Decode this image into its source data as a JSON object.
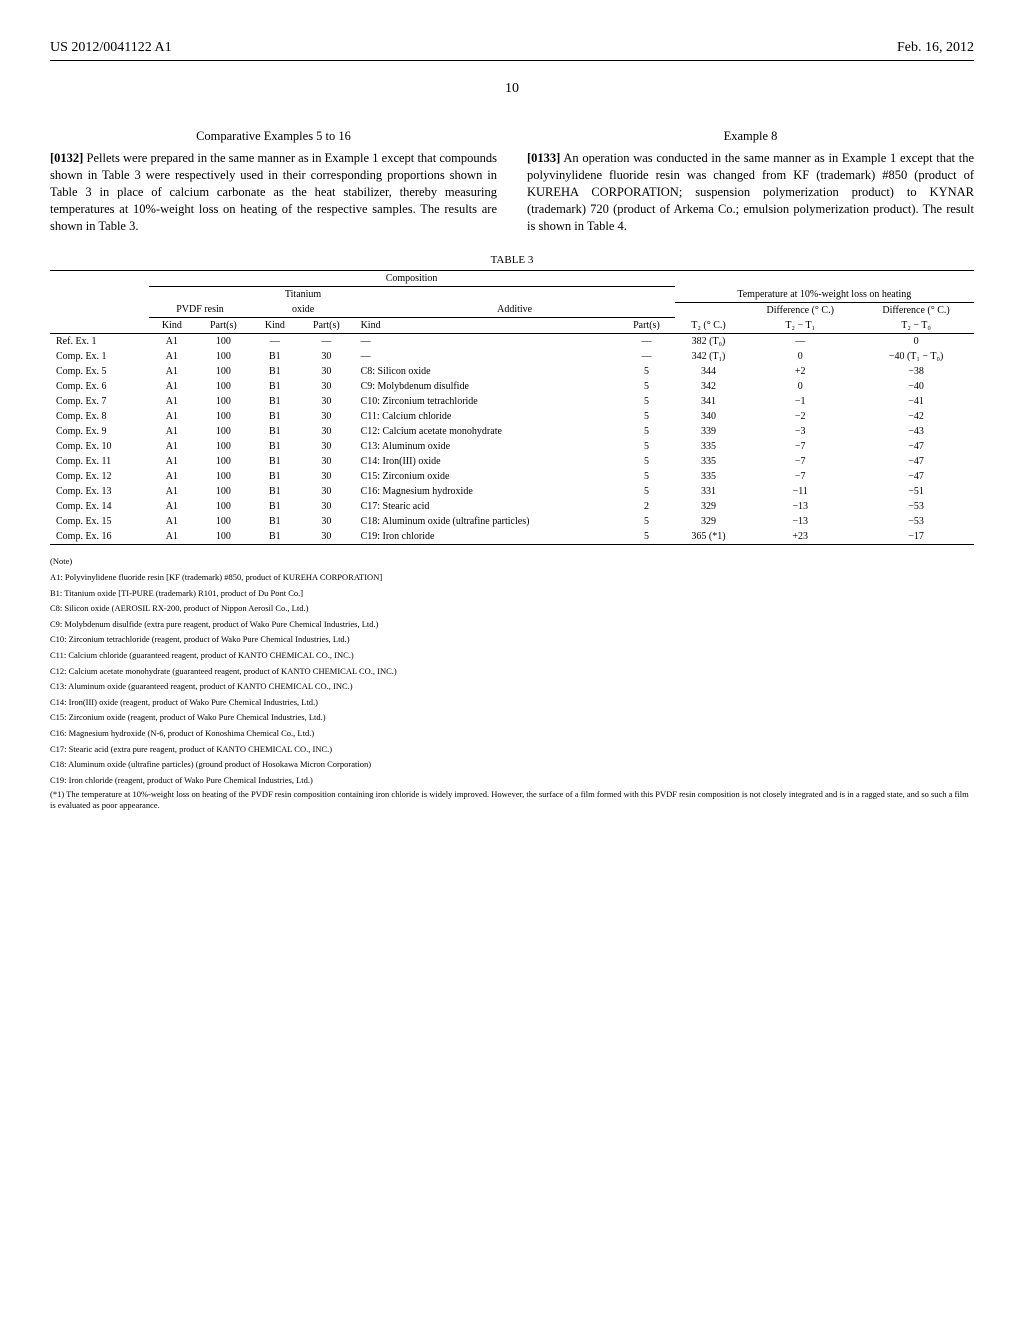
{
  "header": {
    "left": "US 2012/0041122 A1",
    "right": "Feb. 16, 2012",
    "page": "10"
  },
  "left_col": {
    "heading": "Comparative Examples 5 to 16",
    "para_num": "[0132]",
    "para": "Pellets were prepared in the same manner as in Example 1 except that compounds shown in Table 3 were respectively used in their corresponding proportions shown in Table 3 in place of calcium carbonate as the heat stabilizer, thereby measuring temperatures at 10%-weight loss on heating of the respective samples. The results are shown in Table 3."
  },
  "right_col": {
    "heading": "Example 8",
    "para_num": "[0133]",
    "para": "An operation was conducted in the same manner as in Example 1 except that the polyvinylidene fluoride resin was changed from KF (trademark) #850 (product of KUREHA CORPORATION; suspension polymerization product) to KYNAR (trademark) 720 (product of Arkema Co.; emulsion polymerization product). The result is shown in Table 4."
  },
  "table": {
    "caption": "TABLE 3",
    "group1": "Composition",
    "group2a": "PVDF resin",
    "group2b_top": "Titanium",
    "group2b": "oxide",
    "group2c": "Additive",
    "group3": "Temperature at 10%-weight loss on heating",
    "col_diff1": "Difference (° C.)",
    "col_diff2": "Difference (° C.)",
    "col_kind": "Kind",
    "col_parts": "Part(s)",
    "col_t2": "T₂ (° C.)",
    "col_d1": "T₂ − T₁",
    "col_d2": "T₂ − T₀",
    "rows": [
      {
        "label": "Ref. Ex. 1",
        "r_kind": "A1",
        "r_part": "100",
        "o_kind": "—",
        "o_part": "—",
        "a_kind": "—",
        "a_part": "—",
        "t2": "382 (T₀)",
        "d1": "—",
        "d2": "0"
      },
      {
        "label": "Comp. Ex. 1",
        "r_kind": "A1",
        "r_part": "100",
        "o_kind": "B1",
        "o_part": "30",
        "a_kind": "—",
        "a_part": "—",
        "t2": "342 (T₁)",
        "d1": "0",
        "d2": "−40 (T₁ − T₀)"
      },
      {
        "label": "Comp. Ex. 5",
        "r_kind": "A1",
        "r_part": "100",
        "o_kind": "B1",
        "o_part": "30",
        "a_kind": "C8: Silicon oxide",
        "a_part": "5",
        "t2": "344",
        "d1": "+2",
        "d2": "−38"
      },
      {
        "label": "Comp. Ex. 6",
        "r_kind": "A1",
        "r_part": "100",
        "o_kind": "B1",
        "o_part": "30",
        "a_kind": "C9: Molybdenum disulfide",
        "a_part": "5",
        "t2": "342",
        "d1": "0",
        "d2": "−40"
      },
      {
        "label": "Comp. Ex. 7",
        "r_kind": "A1",
        "r_part": "100",
        "o_kind": "B1",
        "o_part": "30",
        "a_kind": "C10: Zirconium tetrachloride",
        "a_part": "5",
        "t2": "341",
        "d1": "−1",
        "d2": "−41"
      },
      {
        "label": "Comp. Ex. 8",
        "r_kind": "A1",
        "r_part": "100",
        "o_kind": "B1",
        "o_part": "30",
        "a_kind": "C11: Calcium chloride",
        "a_part": "5",
        "t2": "340",
        "d1": "−2",
        "d2": "−42"
      },
      {
        "label": "Comp. Ex. 9",
        "r_kind": "A1",
        "r_part": "100",
        "o_kind": "B1",
        "o_part": "30",
        "a_kind": "C12: Calcium acetate monohydrate",
        "a_part": "5",
        "t2": "339",
        "d1": "−3",
        "d2": "−43"
      },
      {
        "label": "Comp. Ex. 10",
        "r_kind": "A1",
        "r_part": "100",
        "o_kind": "B1",
        "o_part": "30",
        "a_kind": "C13: Aluminum oxide",
        "a_part": "5",
        "t2": "335",
        "d1": "−7",
        "d2": "−47"
      },
      {
        "label": "Comp. Ex. 11",
        "r_kind": "A1",
        "r_part": "100",
        "o_kind": "B1",
        "o_part": "30",
        "a_kind": "C14: Iron(III) oxide",
        "a_part": "5",
        "t2": "335",
        "d1": "−7",
        "d2": "−47"
      },
      {
        "label": "Comp. Ex. 12",
        "r_kind": "A1",
        "r_part": "100",
        "o_kind": "B1",
        "o_part": "30",
        "a_kind": "C15: Zirconium oxide",
        "a_part": "5",
        "t2": "335",
        "d1": "−7",
        "d2": "−47"
      },
      {
        "label": "Comp. Ex. 13",
        "r_kind": "A1",
        "r_part": "100",
        "o_kind": "B1",
        "o_part": "30",
        "a_kind": "C16: Magnesium hydroxide",
        "a_part": "5",
        "t2": "331",
        "d1": "−11",
        "d2": "−51"
      },
      {
        "label": "Comp. Ex. 14",
        "r_kind": "A1",
        "r_part": "100",
        "o_kind": "B1",
        "o_part": "30",
        "a_kind": "C17: Stearic acid",
        "a_part": "2",
        "t2": "329",
        "d1": "−13",
        "d2": "−53"
      },
      {
        "label": "Comp. Ex. 15",
        "r_kind": "A1",
        "r_part": "100",
        "o_kind": "B1",
        "o_part": "30",
        "a_kind": "C18: Aluminum oxide (ultrafine particles)",
        "a_part": "5",
        "t2": "329",
        "d1": "−13",
        "d2": "−53"
      },
      {
        "label": "Comp. Ex. 16",
        "r_kind": "A1",
        "r_part": "100",
        "o_kind": "B1",
        "o_part": "30",
        "a_kind": "C19: Iron chloride",
        "a_part": "5",
        "t2": "365 (*1)",
        "d1": "+23",
        "d2": "−17"
      }
    ],
    "notes_label": "(Note)",
    "notes": [
      "A1: Polyvinylidene fluoride resin [KF (trademark) #850, product of KUREHA CORPORATION]",
      "B1: Titanium oxide [TI-PURE (trademark) R101, product of Du Pont Co.]",
      "C8: Silicon oxide (AEROSIL RX-200, product of Nippon Aerosil Co., Ltd.)",
      "C9: Molybdenum disulfide (extra pure reagent, product of Wako Pure Chemical Industries, Ltd.)",
      "C10: Zirconium tetrachloride (reagent, product of Wako Pure Chemical Industries, Ltd.)",
      "C11: Calcium chloride (guaranteed reagent, product of KANTO CHEMICAL CO., INC.)",
      "C12: Calcium acetate monohydrate (guaranteed reagent, product of KANTO CHEMICAL CO., INC.)",
      "C13: Aluminum oxide (guaranteed reagent, product of KANTO CHEMICAL CO., INC.)",
      "C14: Iron(III) oxide (reagent, product of Wako Pure Chemical Industries, Ltd.)",
      "C15: Zirconium oxide (reagent, product of Wako Pure Chemical Industries, Ltd.)",
      "C16: Magnesium hydroxide (N-6, product of Konoshima Chemical Co., Ltd.)",
      "C17: Stearic acid (extra pure reagent, product of KANTO CHEMICAL CO., INC.)",
      "C18: Aluminum oxide (ultrafine particles) (ground product of Hosokawa Micron Corporation)",
      "C19: Iron chloride (reagent, product of Wako Pure Chemical Industries, Ltd.)"
    ],
    "footnote": "(*1) The temperature at 10%-weight loss on heating of the PVDF resin composition containing iron chloride is widely improved. However, the surface of a film formed with this PVDF resin composition is not closely integrated and is in a ragged state, and so such a film is evaluated as poor appearance."
  }
}
